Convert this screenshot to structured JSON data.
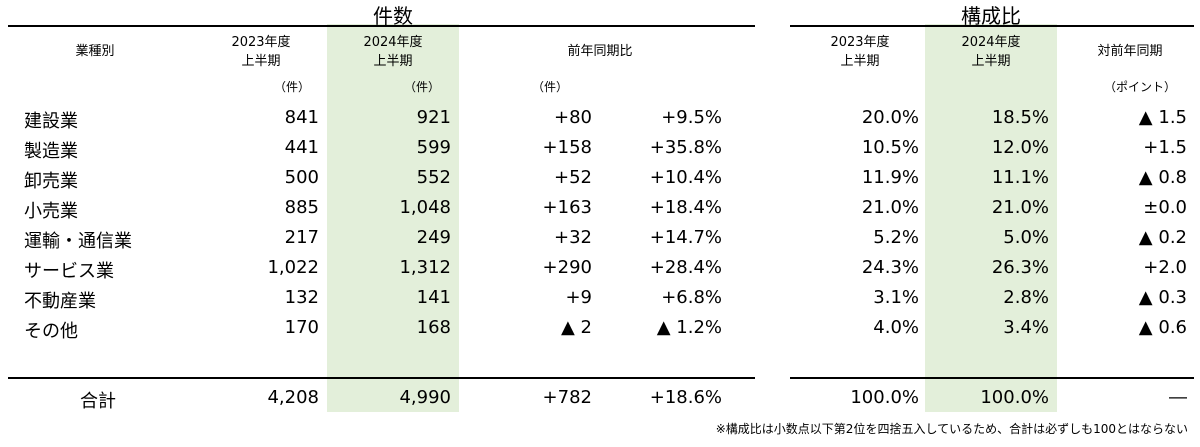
{
  "chart_data": {
    "type": "table",
    "sections": {
      "count_title": "件数",
      "share_title": "構成比"
    },
    "headers": {
      "industry": "業種別",
      "y2023": [
        "2023年度",
        "上半期"
      ],
      "y2024": [
        "2024年度",
        "上半期"
      ],
      "yoy": "前年同期比",
      "share2023": [
        "2023年度",
        "上半期"
      ],
      "share2024": [
        "2024年度",
        "上半期"
      ],
      "share_yoy": "対前年同期"
    },
    "units": {
      "y2023": "（件）",
      "y2024": "（件）",
      "yoy": "（件）",
      "share_yoy": "（ポイント）"
    },
    "rows": [
      {
        "industry": "建設業",
        "c2023": "841",
        "c2024": "921",
        "diff": "+80",
        "pct": "+9.5%",
        "s2023": "20.0%",
        "s2024": "18.5%",
        "spt": "▲ 1.5"
      },
      {
        "industry": "製造業",
        "c2023": "441",
        "c2024": "599",
        "diff": "+158",
        "pct": "+35.8%",
        "s2023": "10.5%",
        "s2024": "12.0%",
        "spt": "+1.5"
      },
      {
        "industry": "卸売業",
        "c2023": "500",
        "c2024": "552",
        "diff": "+52",
        "pct": "+10.4%",
        "s2023": "11.9%",
        "s2024": "11.1%",
        "spt": "▲ 0.8"
      },
      {
        "industry": "小売業",
        "c2023": "885",
        "c2024": "1,048",
        "diff": "+163",
        "pct": "+18.4%",
        "s2023": "21.0%",
        "s2024": "21.0%",
        "spt": "±0.0"
      },
      {
        "industry": "運輸・通信業",
        "c2023": "217",
        "c2024": "249",
        "diff": "+32",
        "pct": "+14.7%",
        "s2023": "5.2%",
        "s2024": "5.0%",
        "spt": "▲ 0.2"
      },
      {
        "industry": "サービス業",
        "c2023": "1,022",
        "c2024": "1,312",
        "diff": "+290",
        "pct": "+28.4%",
        "s2023": "24.3%",
        "s2024": "26.3%",
        "spt": "+2.0"
      },
      {
        "industry": "不動産業",
        "c2023": "132",
        "c2024": "141",
        "diff": "+9",
        "pct": "+6.8%",
        "s2023": "3.1%",
        "s2024": "2.8%",
        "spt": "▲ 0.3"
      },
      {
        "industry": "その他",
        "c2023": "170",
        "c2024": "168",
        "diff": "▲ 2",
        "pct": "▲ 1.2%",
        "s2023": "4.0%",
        "s2024": "3.4%",
        "spt": "▲ 0.6"
      }
    ],
    "total": {
      "industry": "合計",
      "c2023": "4,208",
      "c2024": "4,990",
      "diff": "+782",
      "pct": "+18.6%",
      "s2023": "100.0%",
      "s2024": "100.0%",
      "spt": "―"
    },
    "note": "※構成比は小数点以下第2位を四捨五入しているため、合計は必ずしも100とはならない"
  },
  "colors": {
    "highlight": "#e3efda",
    "rule": "#000000",
    "light_rule": "#808080"
  }
}
